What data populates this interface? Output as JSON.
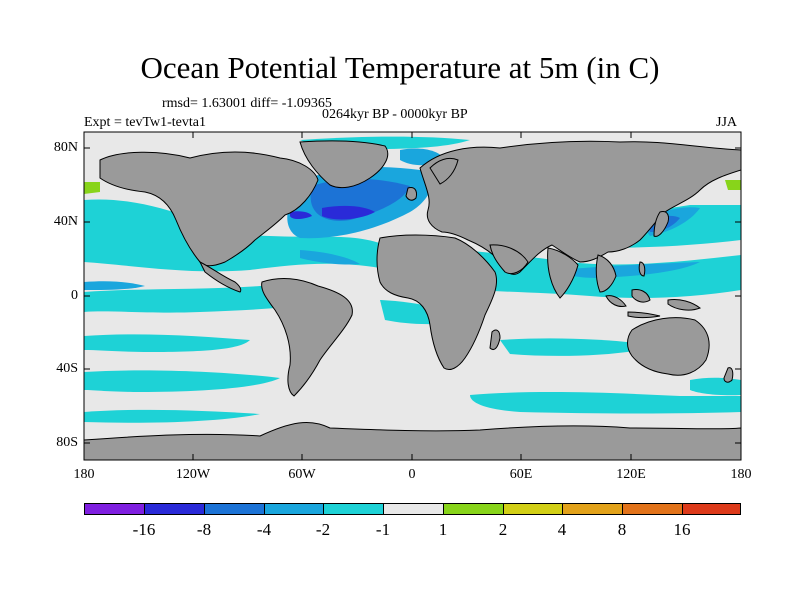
{
  "figure": {
    "title": "Ocean Potential Temperature at 5m (in C)",
    "stats_text": "rmsd= 1.63001 diff= -1.09365",
    "period_text": "0264kyr BP - 0000kyr BP",
    "experiment_text": "Expt = tevTw1-tevta1",
    "season_text": "JJA"
  },
  "axes": {
    "y_ticks": [
      "80N",
      "40N",
      "0",
      "40S",
      "80S"
    ],
    "x_ticks": [
      "180",
      "120W",
      "60W",
      "0",
      "60E",
      "120E",
      "180"
    ]
  },
  "colorbar": {
    "colors": [
      "#7f1fe0",
      "#2a2ad8",
      "#1c73d6",
      "#1aa6dd",
      "#1ed2d6",
      "#e8e8e8",
      "#88d41a",
      "#d2cf16",
      "#e2a21a",
      "#e2731a",
      "#dd3a1a"
    ],
    "labels": [
      "-16",
      "-8",
      "-4",
      "-2",
      "-1",
      "1",
      "2",
      "4",
      "8",
      "16"
    ]
  },
  "map_colors": {
    "land": "#9a9a9a",
    "near_zero": "#e8e8e8",
    "cool_1": "#1ed2d6",
    "cool_2": "#1aa6dd",
    "cool_4": "#1c73d6",
    "cool_8": "#2a2ad8",
    "warm_2": "#88d41a",
    "warm_4": "#d2cf16"
  }
}
